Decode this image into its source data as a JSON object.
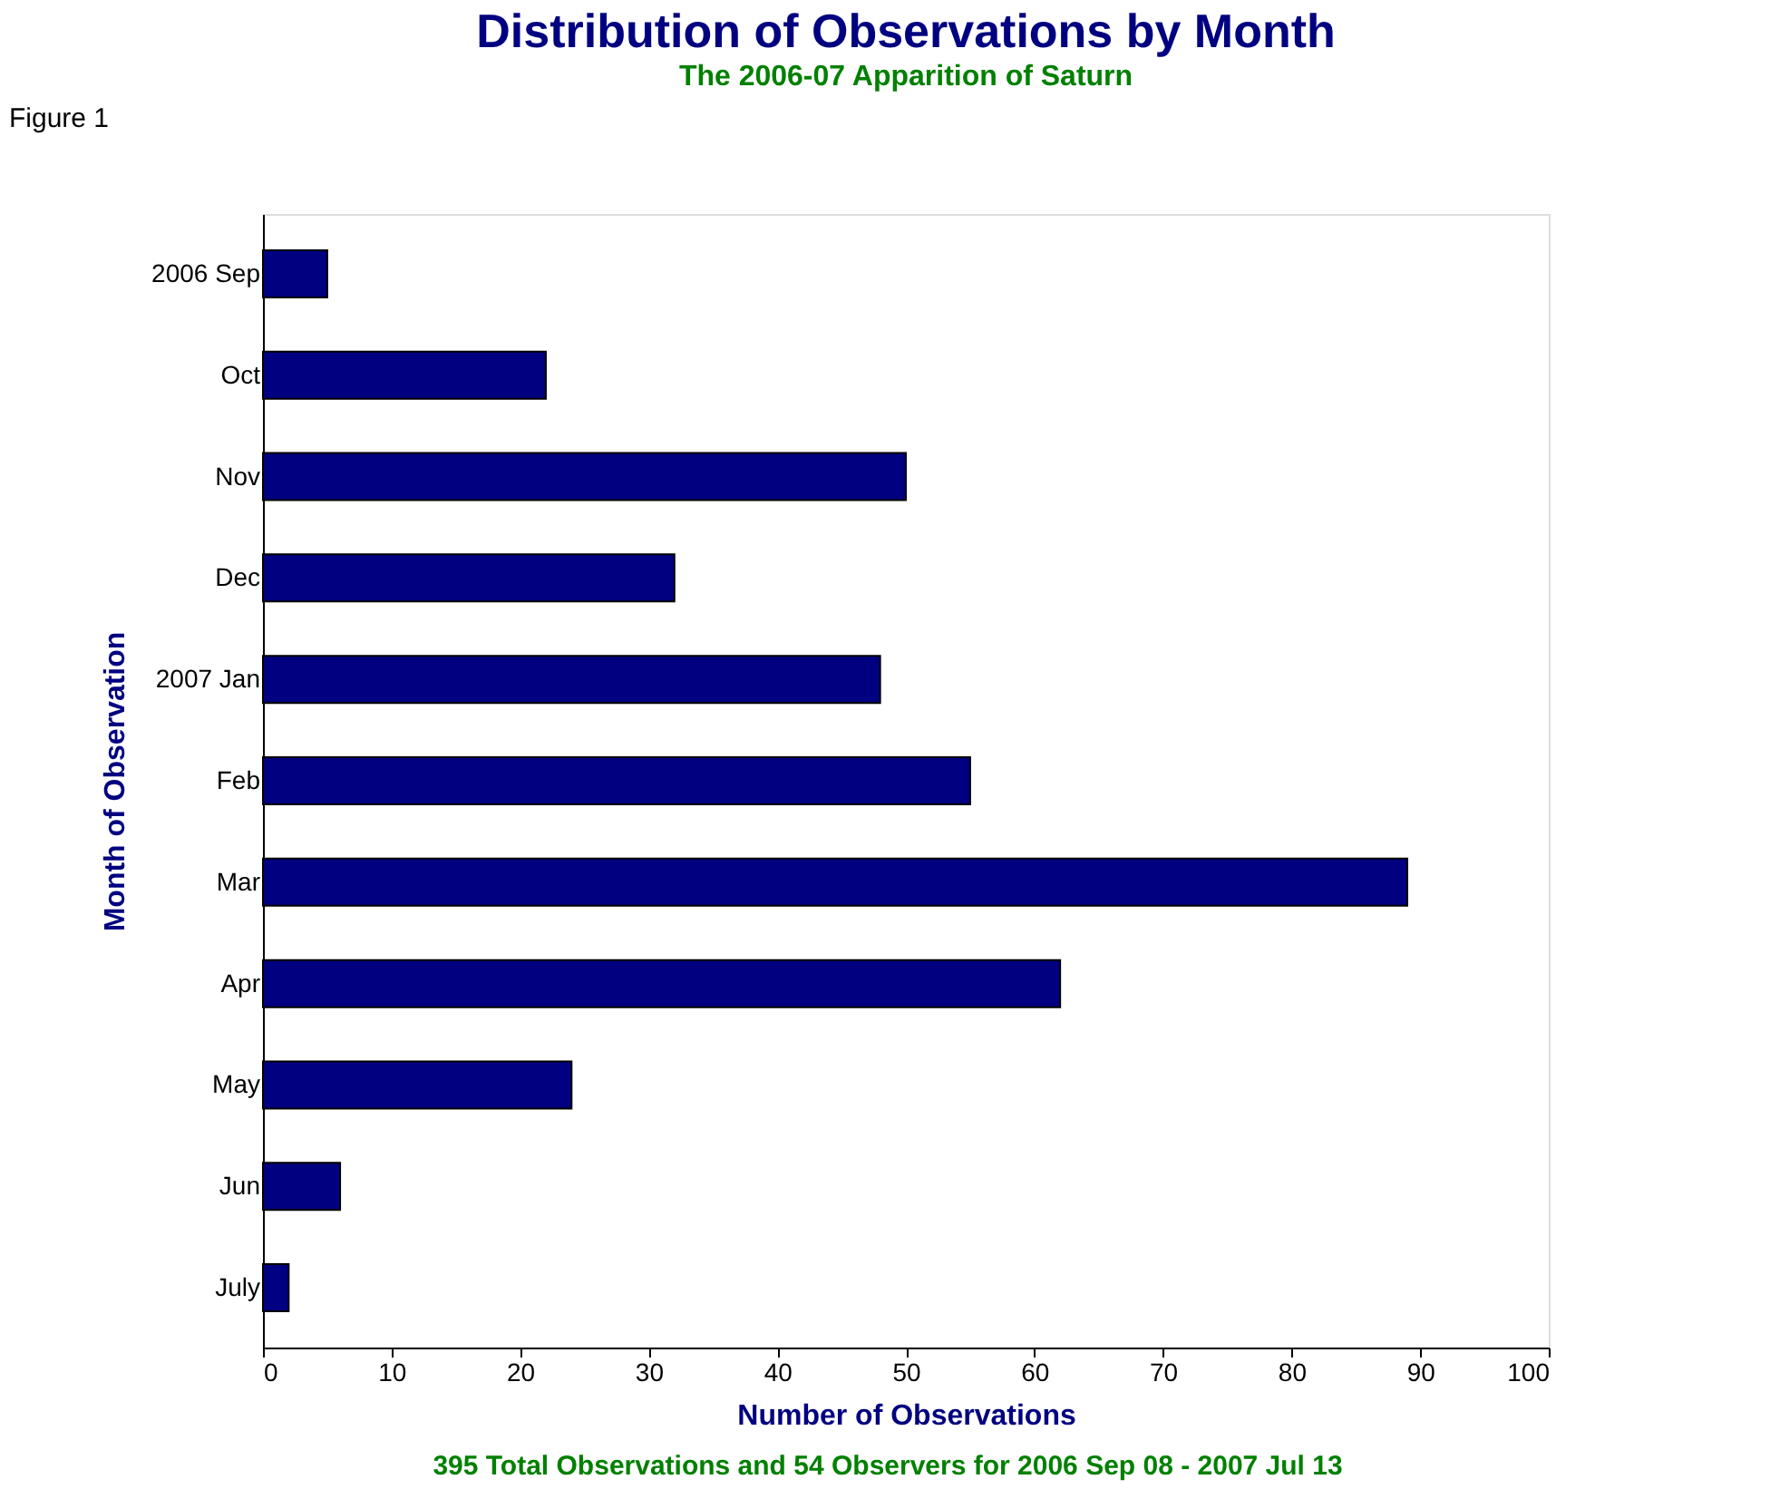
{
  "chart_data": {
    "type": "bar",
    "orientation": "horizontal",
    "title": "Distribution of Observations by Month",
    "subtitle": "The 2006-07 Apparition of Saturn",
    "xlabel": "Number of Observations",
    "ylabel": "Month of Observation",
    "categories": [
      "2006 Sep",
      "Oct",
      "Nov",
      "Dec",
      "2007 Jan",
      "Feb",
      "Mar",
      "Apr",
      "May",
      "Jun",
      "July"
    ],
    "values": [
      5,
      22,
      50,
      32,
      48,
      55,
      89,
      62,
      24,
      6,
      2
    ],
    "color": "#000080",
    "xlim": [
      0,
      100
    ],
    "xticks": [
      0,
      10,
      20,
      30,
      40,
      50,
      60,
      70,
      80,
      90,
      100
    ],
    "grid": false,
    "annotations": [
      "Figure 1",
      "395 Total Observations and 54 Observers for 2006 Sep 08 - 2007 Jul 13"
    ]
  }
}
